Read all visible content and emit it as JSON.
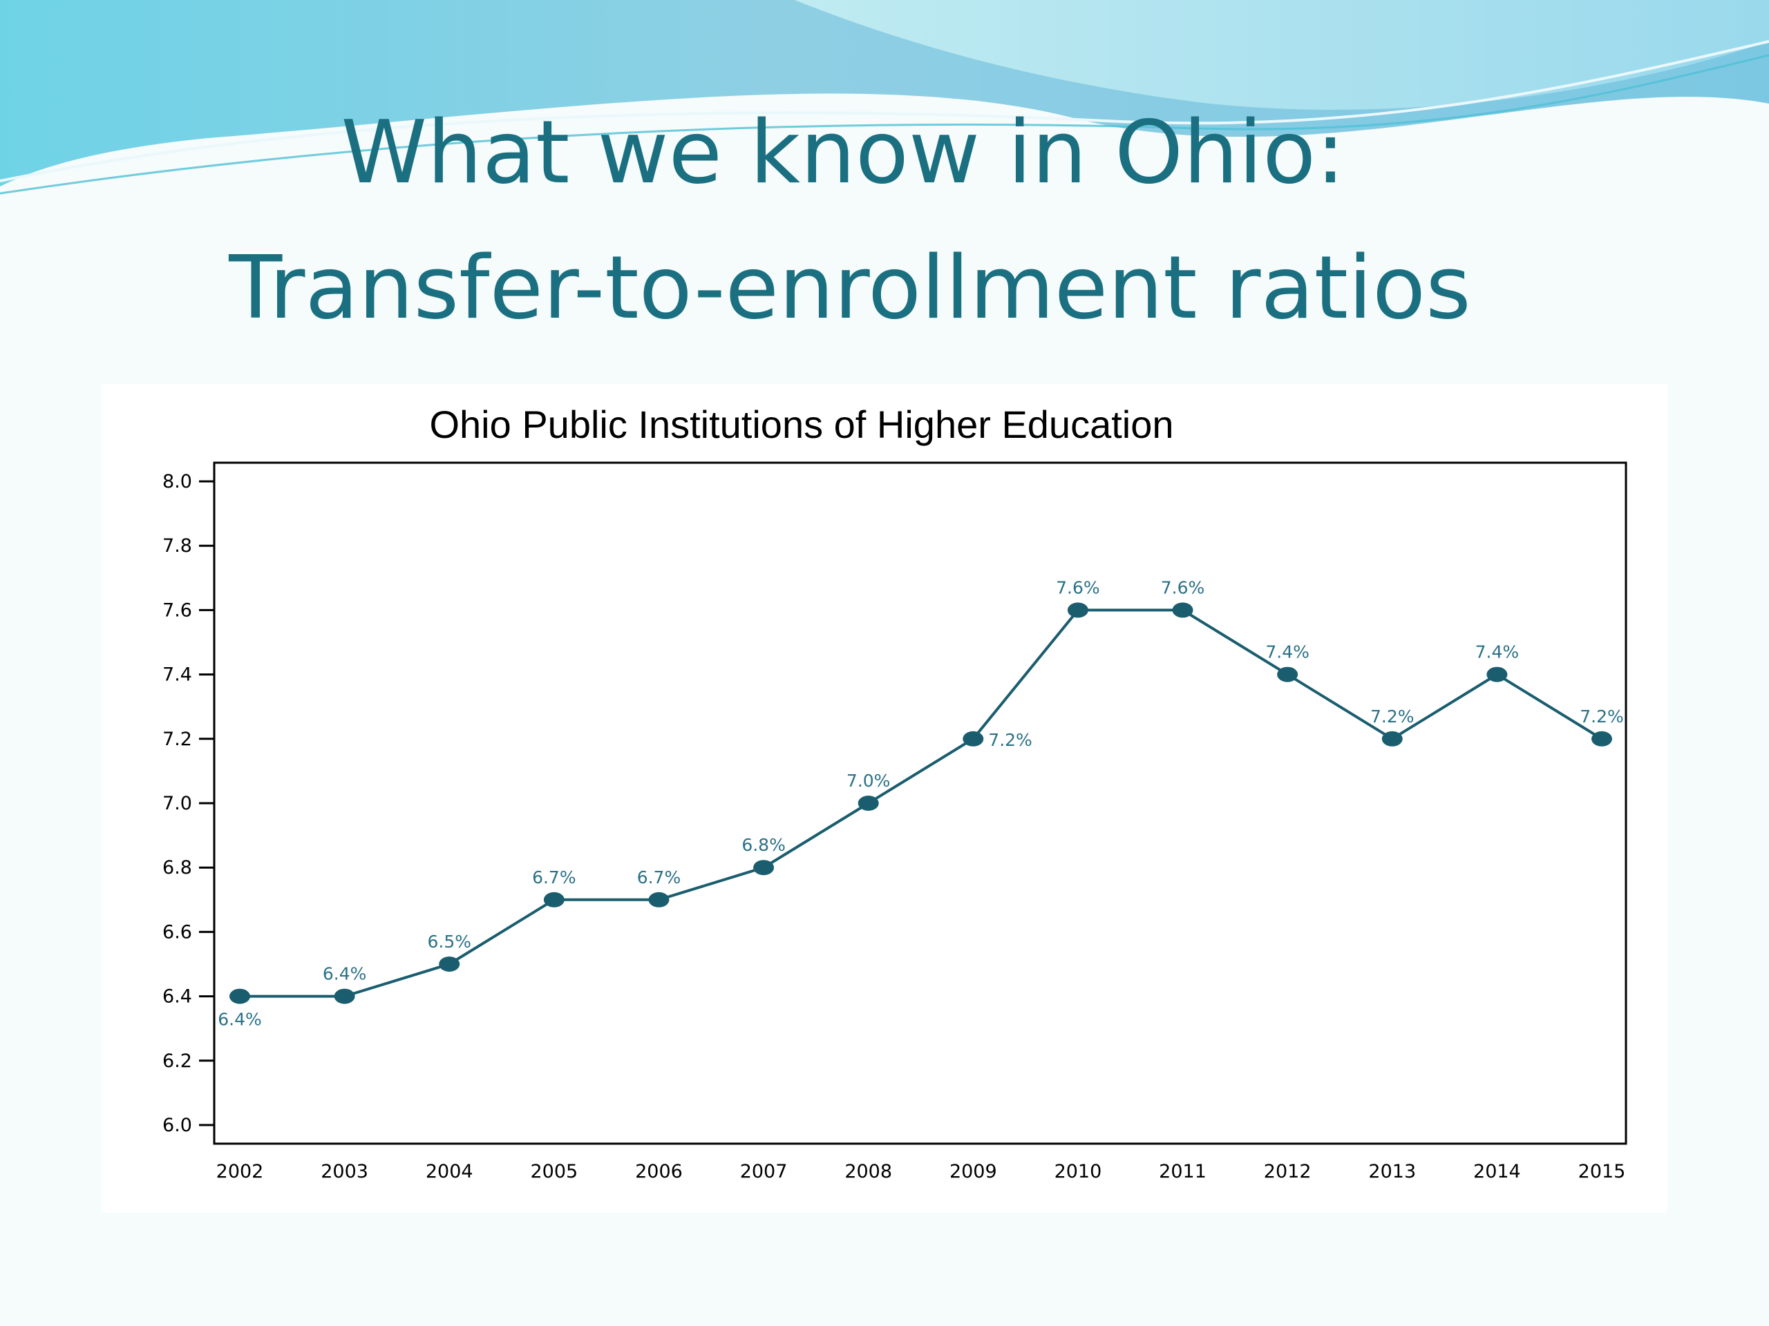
{
  "slide": {
    "title_line1": "What we know in Ohio:",
    "title_line2": "Transfer-to-enrollment ratios"
  },
  "colors": {
    "title": "#1a6f80",
    "series": "#1a5d6e",
    "data_label": "#2a7187",
    "axis": "#000000"
  },
  "chart_data": {
    "type": "line",
    "title": "Ohio Public Institutions of Higher Education",
    "xlabel": "",
    "ylabel": "",
    "categories": [
      "2002",
      "2003",
      "2004",
      "2005",
      "2006",
      "2007",
      "2008",
      "2009",
      "2010",
      "2011",
      "2012",
      "2013",
      "2014",
      "2015"
    ],
    "series": [
      {
        "values": [
          6.4,
          6.4,
          6.5,
          6.7,
          6.7,
          6.8,
          7.0,
          7.2,
          7.6,
          7.6,
          7.4,
          7.2,
          7.4,
          7.2
        ],
        "labels": [
          "6.4%",
          "6.4%",
          "6.5%",
          "6.7%",
          "6.7%",
          "6.8%",
          "7.0%",
          "7.2%",
          "7.6%",
          "7.6%",
          "7.4%",
          "7.2%",
          "7.4%",
          "7.2%"
        ]
      }
    ],
    "ylim": [
      6.0,
      8.0
    ],
    "yticks": [
      "6.0",
      "6.2",
      "6.4",
      "6.6",
      "6.8",
      "7.0",
      "7.2",
      "7.4",
      "7.6",
      "7.8",
      "8.0"
    ],
    "grid": false,
    "legend": "none"
  }
}
